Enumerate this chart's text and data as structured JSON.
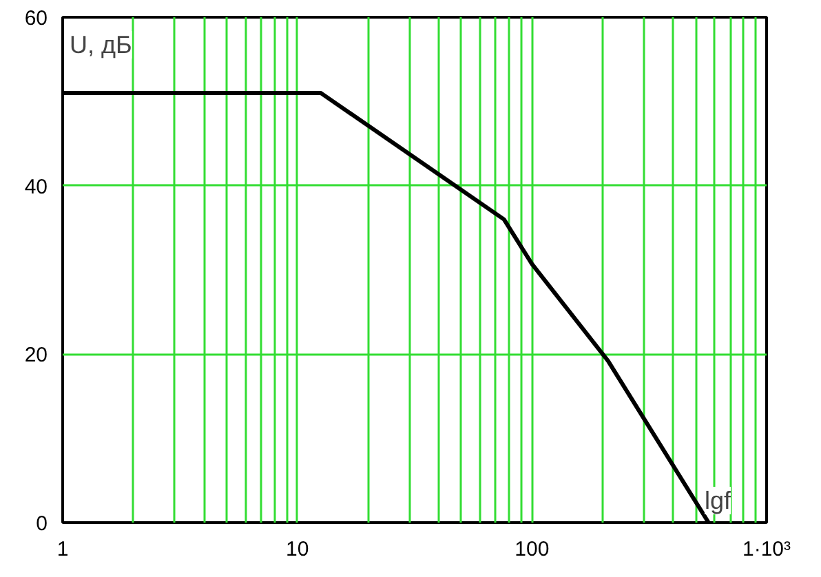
{
  "chart_data": {
    "type": "line",
    "xlabel": "lgf",
    "ylabel": "U, дБ",
    "log": "x",
    "grid": true,
    "color": "#000000",
    "x": [
      1,
      12.6,
      76,
      100,
      211,
      566
    ],
    "values": [
      51,
      51,
      36,
      30.7,
      19.2,
      0
    ],
    "xlim": [
      1,
      1000
    ],
    "ylim": [
      0,
      60
    ],
    "xticks": [
      1,
      {
        "value": 2,
        "label": null
      },
      {
        "value": 3,
        "label": null
      },
      {
        "value": 4,
        "label": null
      },
      {
        "value": 5,
        "label": null
      },
      {
        "value": 6,
        "label": null
      },
      {
        "value": 7,
        "label": null
      },
      {
        "value": 8,
        "label": null
      },
      {
        "value": 9,
        "label": null
      },
      10,
      {
        "value": 20,
        "label": null
      },
      {
        "value": 30,
        "label": null
      },
      {
        "value": 40,
        "label": null
      },
      {
        "value": 50,
        "label": null
      },
      {
        "value": 60,
        "label": null
      },
      {
        "value": 70,
        "label": null
      },
      {
        "value": 80,
        "label": null
      },
      {
        "value": 90,
        "label": null
      },
      100,
      {
        "value": 200,
        "label": null
      },
      {
        "value": 300,
        "label": null
      },
      {
        "value": 400,
        "label": null
      },
      {
        "value": 500,
        "label": null
      },
      {
        "value": 600,
        "label": null
      },
      {
        "value": 700,
        "label": null
      },
      {
        "value": 800,
        "label": null
      },
      {
        "value": 900,
        "label": null
      },
      {
        "value": 1000,
        "label": "1·10³"
      }
    ],
    "yticks": [
      0,
      20,
      40,
      60
    ]
  }
}
